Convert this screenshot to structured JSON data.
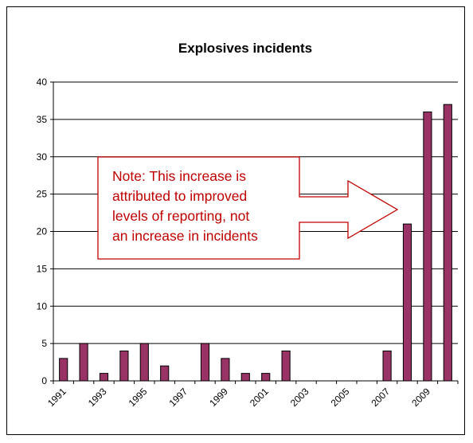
{
  "chart_data": {
    "type": "bar",
    "title": "Explosives incidents",
    "xlabel": "",
    "ylabel": "",
    "x": [
      1991,
      1992,
      1993,
      1994,
      1995,
      1996,
      1997,
      1998,
      1999,
      2000,
      2001,
      2002,
      2003,
      2004,
      2005,
      2006,
      2007,
      2008,
      2009,
      2010
    ],
    "values": [
      3,
      5,
      1,
      4,
      5,
      2,
      0,
      5,
      3,
      1,
      1,
      4,
      0,
      0,
      0,
      0,
      4,
      21,
      36,
      37
    ],
    "x_tick_labels": [
      "1991",
      "1993",
      "1995",
      "1997",
      "1999",
      "2001",
      "2003",
      "2005",
      "2007",
      "2009"
    ],
    "ylim": [
      0,
      40
    ],
    "y_ticks": [
      0,
      5,
      10,
      15,
      20,
      25,
      30,
      35,
      40
    ],
    "grid": true,
    "legend": "none",
    "bar_color": "#993366",
    "annotation": {
      "lines": [
        "Note: This increase is",
        "attributed to improved",
        "levels of reporting, not",
        "an increase in incidents"
      ],
      "color": "#c00000",
      "arrow": "right"
    }
  }
}
